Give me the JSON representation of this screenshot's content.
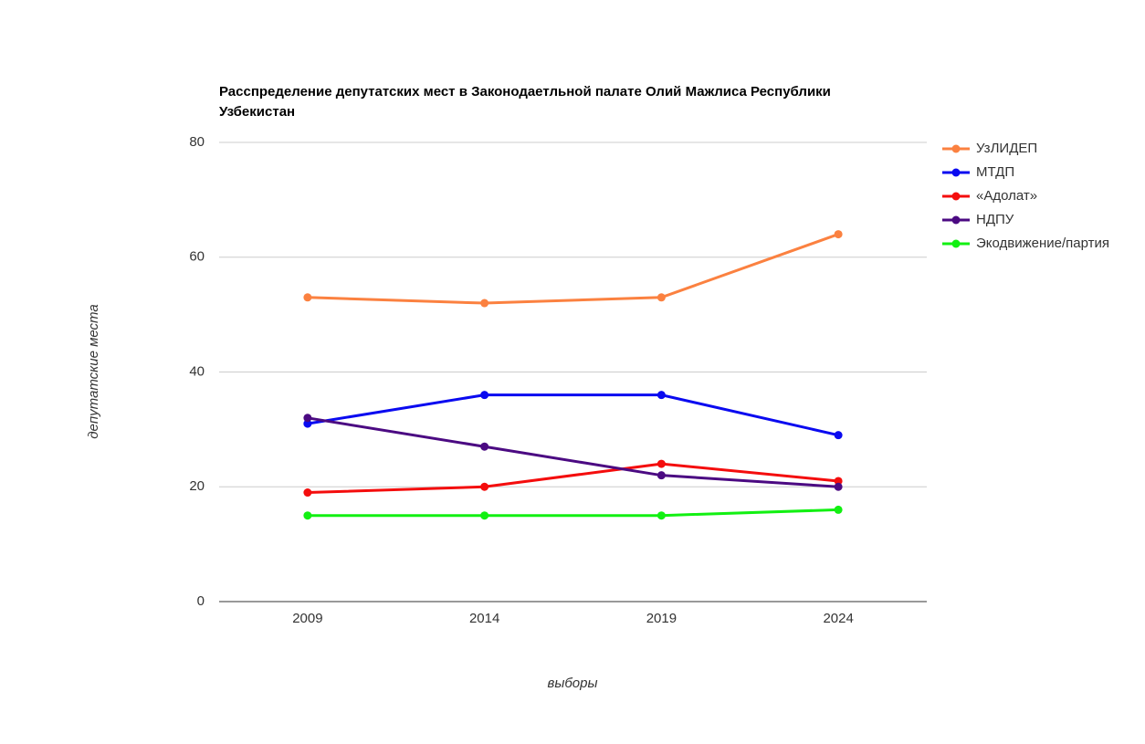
{
  "chart_data": {
    "type": "line",
    "title": "Расспределение депутатских мест в Законодаетльной палате Олий Мажлиса Республики Узбекистан",
    "x_label": "выборы",
    "y_label": "депутатские места",
    "categories": [
      "2009",
      "2014",
      "2019",
      "2024"
    ],
    "series": [
      {
        "name": "УзЛИДЕП",
        "color": "#fb8140",
        "values": [
          53,
          52,
          53,
          64
        ]
      },
      {
        "name": "МТДП",
        "color": "#0a0af0",
        "values": [
          31,
          36,
          36,
          29
        ]
      },
      {
        "name": "«Адолат»",
        "color": "#f40d0d",
        "values": [
          19,
          20,
          24,
          21
        ]
      },
      {
        "name": "НДПУ",
        "color": "#4b0a82",
        "values": [
          32,
          27,
          22,
          20
        ]
      },
      {
        "name": "Экодвижение/партия",
        "color": "#12f012",
        "values": [
          15,
          15,
          15,
          16
        ]
      }
    ],
    "ylim": [
      0,
      80
    ],
    "yticks": [
      0,
      20,
      40,
      60,
      80
    ],
    "grid": true,
    "legend": "right"
  }
}
